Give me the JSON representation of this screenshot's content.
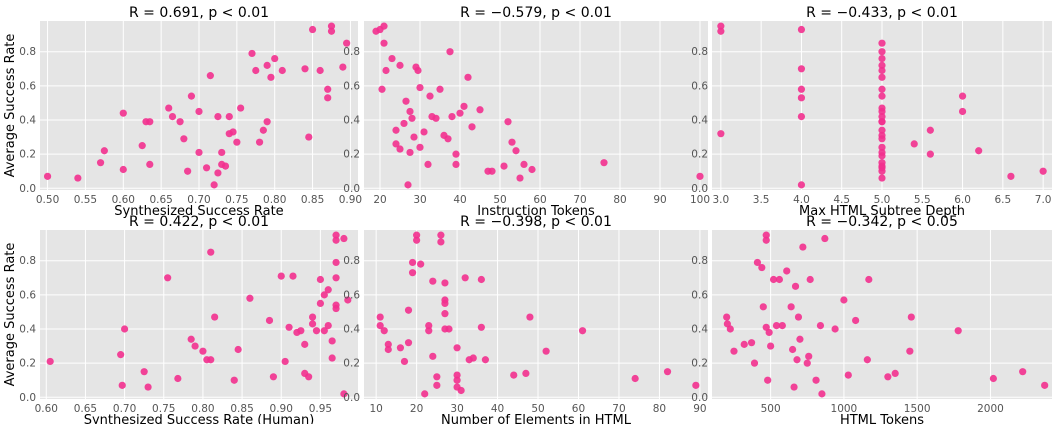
{
  "chart_data": [
    {
      "type": "scatter",
      "title": "R = 0.691, p < 0.01",
      "xlabel": "Synthesized Success Rate",
      "ylabel": "Average Success Rate",
      "xlim": [
        0.49,
        0.91
      ],
      "ylim": [
        -0.01,
        0.98
      ],
      "xticks": [
        "0.50",
        "0.55",
        "0.60",
        "0.65",
        "0.70",
        "0.75",
        "0.80",
        "0.85",
        "0.90"
      ],
      "xtick_values": [
        0.5,
        0.55,
        0.6,
        0.65,
        0.7,
        0.75,
        0.8,
        0.85,
        0.9
      ],
      "yticks": [
        "0.0",
        "0.2",
        "0.4",
        "0.6",
        "0.8"
      ],
      "ytick_values": [
        0.0,
        0.2,
        0.4,
        0.6,
        0.8
      ],
      "color": "#f2308e",
      "grid": true,
      "points": [
        [
          0.5,
          0.07
        ],
        [
          0.54,
          0.06
        ],
        [
          0.57,
          0.15
        ],
        [
          0.575,
          0.22
        ],
        [
          0.6,
          0.44
        ],
        [
          0.6,
          0.11
        ],
        [
          0.625,
          0.25
        ],
        [
          0.63,
          0.39
        ],
        [
          0.635,
          0.39
        ],
        [
          0.635,
          0.14
        ],
        [
          0.66,
          0.47
        ],
        [
          0.665,
          0.42
        ],
        [
          0.675,
          0.39
        ],
        [
          0.68,
          0.29
        ],
        [
          0.685,
          0.1
        ],
        [
          0.69,
          0.54
        ],
        [
          0.7,
          0.45
        ],
        [
          0.7,
          0.21
        ],
        [
          0.71,
          0.12
        ],
        [
          0.715,
          0.66
        ],
        [
          0.72,
          0.02
        ],
        [
          0.725,
          0.42
        ],
        [
          0.725,
          0.09
        ],
        [
          0.73,
          0.14
        ],
        [
          0.73,
          0.21
        ],
        [
          0.735,
          0.13
        ],
        [
          0.74,
          0.42
        ],
        [
          0.74,
          0.32
        ],
        [
          0.745,
          0.33
        ],
        [
          0.75,
          0.27
        ],
        [
          0.755,
          0.47
        ],
        [
          0.77,
          0.79
        ],
        [
          0.775,
          0.69
        ],
        [
          0.78,
          0.27
        ],
        [
          0.785,
          0.34
        ],
        [
          0.79,
          0.39
        ],
        [
          0.79,
          0.72
        ],
        [
          0.795,
          0.65
        ],
        [
          0.8,
          0.76
        ],
        [
          0.81,
          0.69
        ],
        [
          0.84,
          0.7
        ],
        [
          0.845,
          0.3
        ],
        [
          0.85,
          0.93
        ],
        [
          0.86,
          0.69
        ],
        [
          0.87,
          0.53
        ],
        [
          0.87,
          0.58
        ],
        [
          0.875,
          0.95
        ],
        [
          0.875,
          0.92
        ],
        [
          0.89,
          0.71
        ],
        [
          0.895,
          0.85
        ]
      ]
    },
    {
      "type": "scatter",
      "title": "R = −0.579, p < 0.01",
      "xlabel": "Instruction Tokens",
      "ylabel": "",
      "xlim": [
        16,
        102
      ],
      "ylim": [
        -0.01,
        0.98
      ],
      "xticks": [
        "20",
        "30",
        "40",
        "50",
        "60",
        "70",
        "80",
        "90",
        "100"
      ],
      "xtick_values": [
        20,
        30,
        40,
        50,
        60,
        70,
        80,
        90,
        100
      ],
      "yticks": [
        "0.0",
        "0.2",
        "0.4",
        "0.6",
        "0.8"
      ],
      "ytick_values": [
        0.0,
        0.2,
        0.4,
        0.6,
        0.8
      ],
      "color": "#f2308e",
      "grid": true,
      "points": [
        [
          19,
          0.92
        ],
        [
          20,
          0.93
        ],
        [
          21,
          0.95
        ],
        [
          21,
          0.85
        ],
        [
          20.5,
          0.58
        ],
        [
          21.5,
          0.69
        ],
        [
          23,
          0.76
        ],
        [
          24,
          0.34
        ],
        [
          24,
          0.26
        ],
        [
          25,
          0.72
        ],
        [
          25,
          0.23
        ],
        [
          26,
          0.38
        ],
        [
          26.5,
          0.51
        ],
        [
          27,
          0.02
        ],
        [
          27.5,
          0.21
        ],
        [
          27.5,
          0.45
        ],
        [
          28,
          0.41
        ],
        [
          28.5,
          0.3
        ],
        [
          29,
          0.71
        ],
        [
          29.5,
          0.69
        ],
        [
          30,
          0.59
        ],
        [
          30,
          0.24
        ],
        [
          31,
          0.33
        ],
        [
          32,
          0.14
        ],
        [
          32.5,
          0.54
        ],
        [
          33,
          0.42
        ],
        [
          34,
          0.41
        ],
        [
          35,
          0.58
        ],
        [
          36,
          0.31
        ],
        [
          37,
          0.29
        ],
        [
          37.5,
          0.8
        ],
        [
          38,
          0.42
        ],
        [
          39,
          0.2
        ],
        [
          39,
          0.14
        ],
        [
          40,
          0.44
        ],
        [
          41,
          0.48
        ],
        [
          42,
          0.65
        ],
        [
          43,
          0.36
        ],
        [
          45,
          0.46
        ],
        [
          47,
          0.1
        ],
        [
          48,
          0.1
        ],
        [
          51,
          0.13
        ],
        [
          52,
          0.39
        ],
        [
          53,
          0.27
        ],
        [
          54,
          0.22
        ],
        [
          55,
          0.06
        ],
        [
          56,
          0.14
        ],
        [
          58,
          0.11
        ],
        [
          76,
          0.15
        ],
        [
          100,
          0.07
        ]
      ]
    },
    {
      "type": "scatter",
      "title": "R = −0.433, p < 0.01",
      "xlabel": "Max HTML Subtree Depth",
      "ylabel": "",
      "xlim": [
        2.89,
        7.11
      ],
      "ylim": [
        -0.01,
        0.98
      ],
      "xticks": [
        "3.0",
        "3.5",
        "4.0",
        "4.5",
        "5.0",
        "5.5",
        "6.0",
        "6.5",
        "7.0"
      ],
      "xtick_values": [
        3.0,
        3.5,
        4.0,
        4.5,
        5.0,
        5.5,
        6.0,
        6.5,
        7.0
      ],
      "yticks": [
        "0.0",
        "0.2",
        "0.4",
        "0.6",
        "0.8"
      ],
      "ytick_values": [
        0.0,
        0.2,
        0.4,
        0.6,
        0.8
      ],
      "color": "#f2308e",
      "grid": true,
      "points": [
        [
          3,
          0.95
        ],
        [
          3,
          0.92
        ],
        [
          3,
          0.32
        ],
        [
          4,
          0.93
        ],
        [
          4,
          0.7
        ],
        [
          4,
          0.58
        ],
        [
          4,
          0.53
        ],
        [
          4,
          0.42
        ],
        [
          4,
          0.02
        ],
        [
          5,
          0.85
        ],
        [
          5,
          0.8
        ],
        [
          5,
          0.76
        ],
        [
          5,
          0.72
        ],
        [
          5,
          0.69
        ],
        [
          5,
          0.65
        ],
        [
          5,
          0.58
        ],
        [
          5,
          0.54
        ],
        [
          5,
          0.47
        ],
        [
          5,
          0.45
        ],
        [
          5,
          0.42
        ],
        [
          5,
          0.39
        ],
        [
          5,
          0.39
        ],
        [
          5,
          0.34
        ],
        [
          5,
          0.31
        ],
        [
          5,
          0.29
        ],
        [
          5,
          0.24
        ],
        [
          5,
          0.21
        ],
        [
          5,
          0.19
        ],
        [
          5,
          0.15
        ],
        [
          5,
          0.13
        ],
        [
          5,
          0.12
        ],
        [
          5,
          0.1
        ],
        [
          5,
          0.06
        ],
        [
          5.4,
          0.26
        ],
        [
          5.6,
          0.34
        ],
        [
          5.6,
          0.2
        ],
        [
          6,
          0.54
        ],
        [
          6,
          0.45
        ],
        [
          6.2,
          0.22
        ],
        [
          6.6,
          0.07
        ],
        [
          7,
          0.1
        ]
      ]
    },
    {
      "type": "scatter",
      "title": "R = 0.422, p < 0.01",
      "xlabel": "Synthesized Success Rate (Human)",
      "ylabel": "Average Success Rate",
      "xlim": [
        0.592,
        0.998
      ],
      "ylim": [
        -0.01,
        0.98
      ],
      "xticks": [
        "0.60",
        "0.65",
        "0.70",
        "0.75",
        "0.80",
        "0.85",
        "0.90",
        "0.95"
      ],
      "xtick_values": [
        0.6,
        0.65,
        0.7,
        0.75,
        0.8,
        0.85,
        0.9,
        0.95
      ],
      "yticks": [
        "0.0",
        "0.2",
        "0.4",
        "0.6",
        "0.8"
      ],
      "ytick_values": [
        0.0,
        0.2,
        0.4,
        0.6,
        0.8
      ],
      "color": "#f2308e",
      "grid": true,
      "points": [
        [
          0.605,
          0.21
        ],
        [
          0.695,
          0.25
        ],
        [
          0.697,
          0.07
        ],
        [
          0.7,
          0.4
        ],
        [
          0.725,
          0.15
        ],
        [
          0.73,
          0.06
        ],
        [
          0.755,
          0.7
        ],
        [
          0.768,
          0.11
        ],
        [
          0.785,
          0.34
        ],
        [
          0.79,
          0.3
        ],
        [
          0.8,
          0.27
        ],
        [
          0.805,
          0.22
        ],
        [
          0.81,
          0.22
        ],
        [
          0.81,
          0.85
        ],
        [
          0.815,
          0.47
        ],
        [
          0.84,
          0.1
        ],
        [
          0.845,
          0.28
        ],
        [
          0.86,
          0.58
        ],
        [
          0.885,
          0.45
        ],
        [
          0.89,
          0.12
        ],
        [
          0.9,
          0.71
        ],
        [
          0.905,
          0.21
        ],
        [
          0.91,
          0.41
        ],
        [
          0.915,
          0.71
        ],
        [
          0.92,
          0.38
        ],
        [
          0.925,
          0.39
        ],
        [
          0.93,
          0.31
        ],
        [
          0.93,
          0.14
        ],
        [
          0.935,
          0.12
        ],
        [
          0.94,
          0.47
        ],
        [
          0.94,
          0.43
        ],
        [
          0.945,
          0.39
        ],
        [
          0.95,
          0.69
        ],
        [
          0.95,
          0.55
        ],
        [
          0.955,
          0.6
        ],
        [
          0.955,
          0.39
        ],
        [
          0.96,
          0.63
        ],
        [
          0.96,
          0.42
        ],
        [
          0.965,
          0.33
        ],
        [
          0.965,
          0.23
        ],
        [
          0.97,
          0.95
        ],
        [
          0.97,
          0.92
        ],
        [
          0.97,
          0.79
        ],
        [
          0.97,
          0.7
        ],
        [
          0.97,
          0.54
        ],
        [
          0.97,
          0.52
        ],
        [
          0.98,
          0.93
        ],
        [
          0.98,
          0.02
        ],
        [
          0.985,
          0.57
        ]
      ]
    },
    {
      "type": "scatter",
      "title": "R = −0.398, p < 0.01",
      "xlabel": "Number of Elements in HTML",
      "ylabel": "",
      "xlim": [
        7,
        92
      ],
      "ylim": [
        -0.01,
        0.98
      ],
      "xticks": [
        "10",
        "20",
        "30",
        "40",
        "50",
        "60",
        "70",
        "80",
        "90"
      ],
      "xtick_values": [
        10,
        20,
        30,
        40,
        50,
        60,
        70,
        80,
        90
      ],
      "yticks": [
        "0.0",
        "0.2",
        "0.4",
        "0.6",
        "0.8"
      ],
      "ytick_values": [
        0.0,
        0.2,
        0.4,
        0.6,
        0.8
      ],
      "color": "#f2308e",
      "grid": true,
      "points": [
        [
          11,
          0.47
        ],
        [
          11,
          0.42
        ],
        [
          12,
          0.39
        ],
        [
          13,
          0.28
        ],
        [
          13,
          0.31
        ],
        [
          16,
          0.29
        ],
        [
          17,
          0.21
        ],
        [
          18,
          0.51
        ],
        [
          18,
          0.32
        ],
        [
          19,
          0.79
        ],
        [
          19,
          0.73
        ],
        [
          20,
          0.95
        ],
        [
          20,
          0.92
        ],
        [
          21,
          0.78
        ],
        [
          22,
          0.02
        ],
        [
          23,
          0.39
        ],
        [
          23,
          0.42
        ],
        [
          24,
          0.24
        ],
        [
          24,
          0.68
        ],
        [
          25,
          0.07
        ],
        [
          25,
          0.12
        ],
        [
          26,
          0.95
        ],
        [
          26,
          0.91
        ],
        [
          27,
          0.67
        ],
        [
          27,
          0.57
        ],
        [
          27,
          0.55
        ],
        [
          27,
          0.49
        ],
        [
          27,
          0.4
        ],
        [
          28,
          0.4
        ],
        [
          30,
          0.29
        ],
        [
          30,
          0.13
        ],
        [
          30,
          0.1
        ],
        [
          30,
          0.06
        ],
        [
          31,
          0.04
        ],
        [
          32,
          0.7
        ],
        [
          33,
          0.22
        ],
        [
          34,
          0.23
        ],
        [
          36,
          0.41
        ],
        [
          36,
          0.69
        ],
        [
          37,
          0.22
        ],
        [
          44,
          0.13
        ],
        [
          47,
          0.14
        ],
        [
          48,
          0.47
        ],
        [
          52,
          0.27
        ],
        [
          61,
          0.39
        ],
        [
          74,
          0.11
        ],
        [
          82,
          0.15
        ],
        [
          89,
          0.07
        ]
      ]
    },
    {
      "type": "scatter",
      "title": "R = −0.342, p < 0.05",
      "xlabel": "HTML Tokens",
      "ylabel": "",
      "xlim": [
        100,
        2420
      ],
      "ylim": [
        -0.01,
        0.98
      ],
      "xticks": [
        "500",
        "1000",
        "1500",
        "2000"
      ],
      "xtick_values": [
        500,
        1000,
        1500,
        2000
      ],
      "yticks": [
        "0.0",
        "0.2",
        "0.4",
        "0.6",
        "0.8"
      ],
      "ytick_values": [
        0.0,
        0.2,
        0.4,
        0.6,
        0.8
      ],
      "color": "#f2308e",
      "grid": true,
      "points": [
        [
          200,
          0.47
        ],
        [
          205,
          0.43
        ],
        [
          225,
          0.4
        ],
        [
          250,
          0.27
        ],
        [
          320,
          0.31
        ],
        [
          370,
          0.32
        ],
        [
          390,
          0.2
        ],
        [
          410,
          0.79
        ],
        [
          440,
          0.76
        ],
        [
          450,
          0.53
        ],
        [
          470,
          0.95
        ],
        [
          470,
          0.92
        ],
        [
          470,
          0.41
        ],
        [
          480,
          0.1
        ],
        [
          490,
          0.38
        ],
        [
          500,
          0.3
        ],
        [
          520,
          0.69
        ],
        [
          540,
          0.42
        ],
        [
          560,
          0.69
        ],
        [
          580,
          0.42
        ],
        [
          610,
          0.74
        ],
        [
          640,
          0.53
        ],
        [
          650,
          0.28
        ],
        [
          660,
          0.06
        ],
        [
          670,
          0.65
        ],
        [
          680,
          0.22
        ],
        [
          690,
          0.47
        ],
        [
          700,
          0.34
        ],
        [
          720,
          0.88
        ],
        [
          750,
          0.2
        ],
        [
          760,
          0.24
        ],
        [
          770,
          0.69
        ],
        [
          810,
          0.1
        ],
        [
          840,
          0.42
        ],
        [
          850,
          0.02
        ],
        [
          870,
          0.93
        ],
        [
          940,
          0.4
        ],
        [
          1000,
          0.57
        ],
        [
          1030,
          0.13
        ],
        [
          1080,
          0.45
        ],
        [
          1160,
          0.22
        ],
        [
          1170,
          0.69
        ],
        [
          1300,
          0.12
        ],
        [
          1350,
          0.14
        ],
        [
          1450,
          0.27
        ],
        [
          1460,
          0.47
        ],
        [
          1780,
          0.39
        ],
        [
          2020,
          0.11
        ],
        [
          2220,
          0.15
        ],
        [
          2370,
          0.07
        ]
      ]
    }
  ]
}
